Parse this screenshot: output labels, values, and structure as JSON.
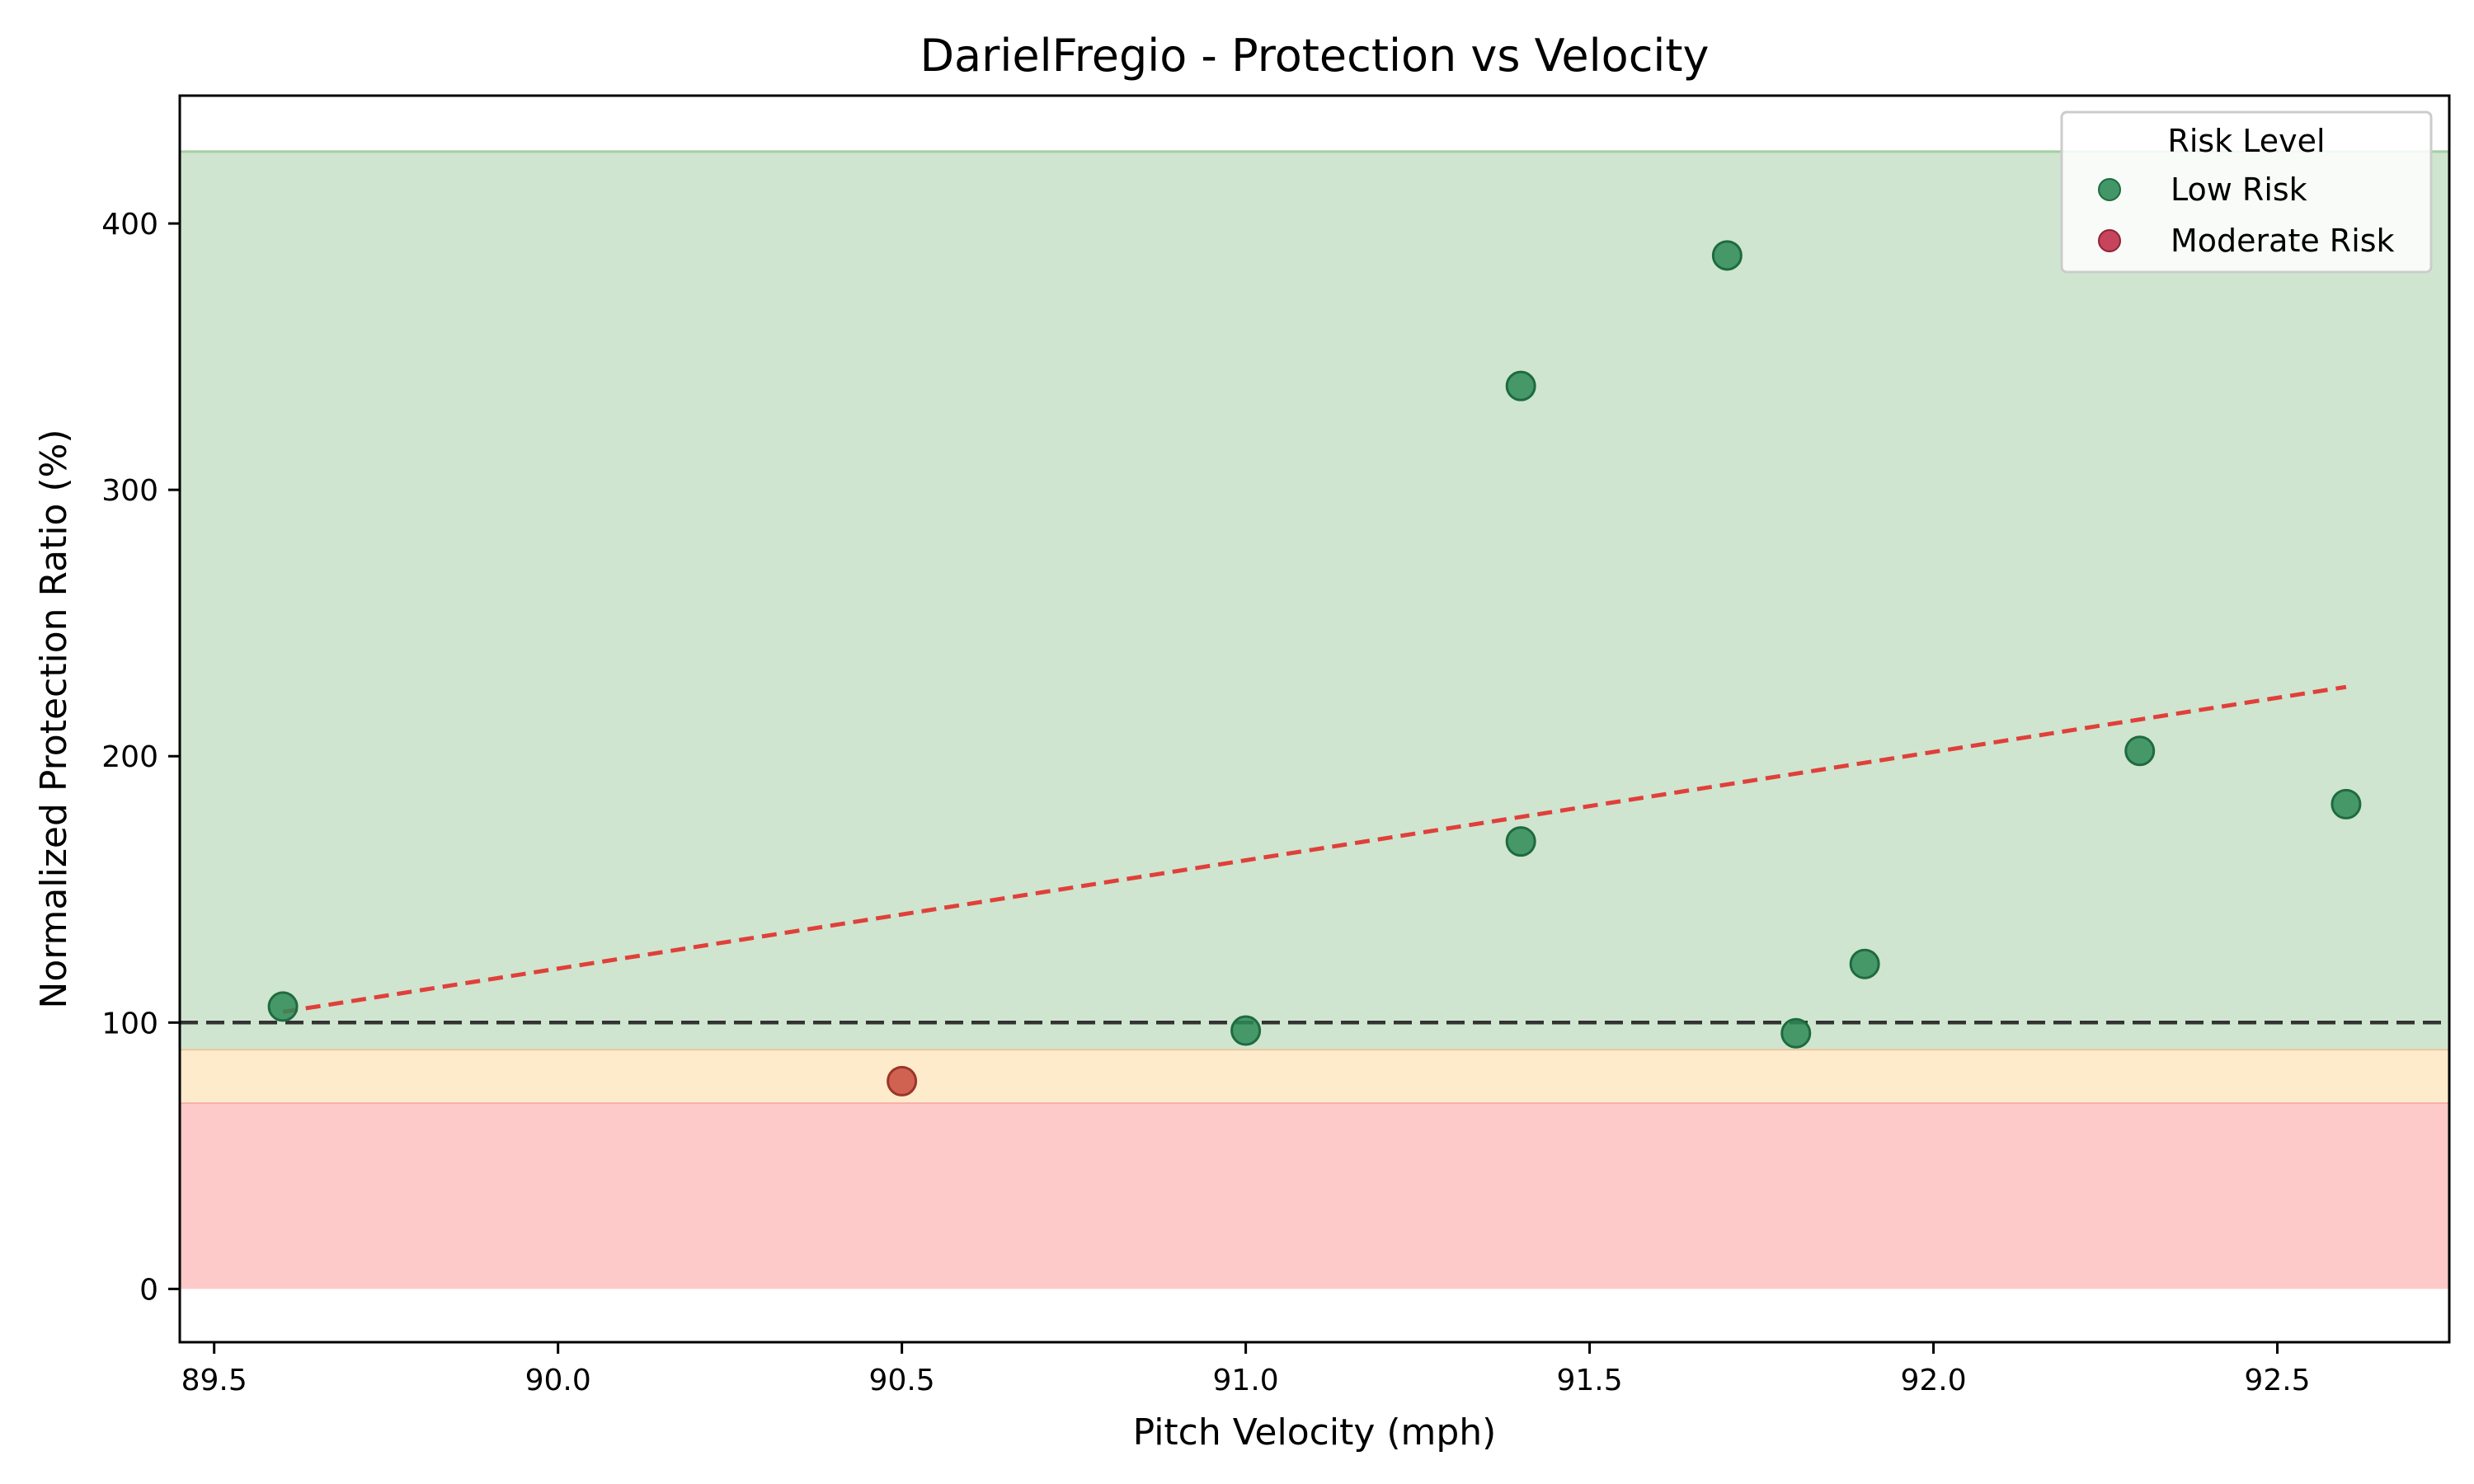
{
  "chart_data": {
    "type": "scatter",
    "title": "DarielFregio - Protection vs Velocity",
    "xlabel": "Pitch Velocity (mph)",
    "ylabel": "Normalized Protection Ratio (%)",
    "xlim": [
      89.45,
      92.75
    ],
    "ylim": [
      -20,
      448
    ],
    "xticks": [
      89.5,
      90.0,
      90.5,
      91.0,
      91.5,
      92.0,
      92.5
    ],
    "xtick_labels": [
      "89.5",
      "90.0",
      "90.5",
      "91.0",
      "91.5",
      "92.0",
      "92.5"
    ],
    "yticks": [
      0,
      100,
      200,
      300,
      400
    ],
    "ytick_labels": [
      "0",
      "100",
      "200",
      "300",
      "400"
    ],
    "grid": false,
    "bands": [
      {
        "from": 0,
        "to": 70,
        "fill": "#fdcac9",
        "edge": "#f5a3a2"
      },
      {
        "from": 70,
        "to": 90,
        "fill": "#fdebcc",
        "edge": "#f5bc8a"
      },
      {
        "from": 90,
        "to": 427,
        "fill": "#cfe5cf",
        "edge": "#a3cfa3"
      }
    ],
    "reference_line": {
      "y": 100,
      "color": "#333333",
      "style": "dashed"
    },
    "trendline": {
      "x": [
        89.6,
        92.6
      ],
      "y": [
        104,
        226
      ],
      "color": "#e0403a",
      "style": "dashed"
    },
    "legend": {
      "title": "Risk Level",
      "placement": "top-right",
      "entries": [
        {
          "label": "Low Risk",
          "color": "#2e8b57"
        },
        {
          "label": "Moderate Risk",
          "color": "#c0304a"
        }
      ]
    },
    "series": [
      {
        "name": "Low Risk",
        "color": "#2e8b57",
        "points": [
          {
            "x": 89.6,
            "y": 106
          },
          {
            "x": 91.0,
            "y": 97
          },
          {
            "x": 91.4,
            "y": 339
          },
          {
            "x": 91.4,
            "y": 168
          },
          {
            "x": 91.7,
            "y": 388
          },
          {
            "x": 91.8,
            "y": 96
          },
          {
            "x": 91.9,
            "y": 122
          },
          {
            "x": 92.3,
            "y": 202
          },
          {
            "x": 92.6,
            "y": 182
          }
        ]
      },
      {
        "name": "Moderate Risk",
        "color": "#c84a3c",
        "points": [
          {
            "x": 90.5,
            "y": 78
          }
        ]
      }
    ]
  }
}
